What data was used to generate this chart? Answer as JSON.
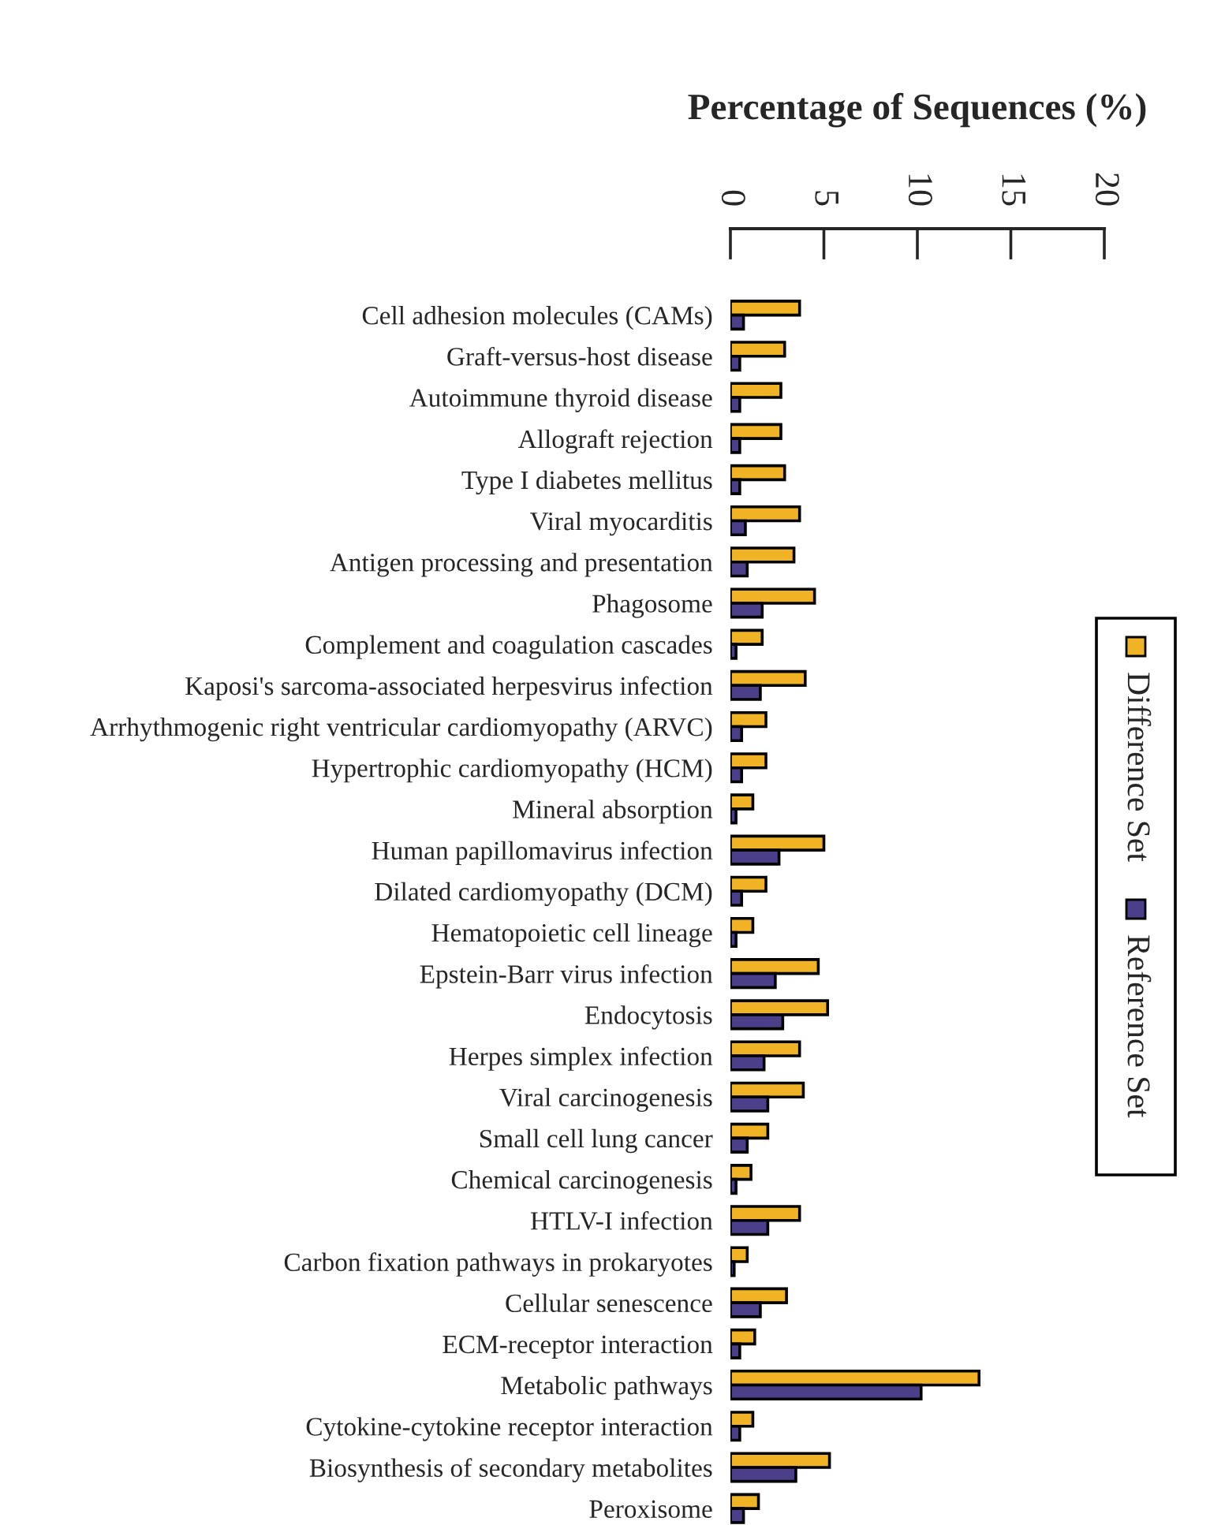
{
  "chart_data": {
    "type": "bar",
    "orientation": "horizontal",
    "xlabel": "Percentage of Sequences (%)",
    "categories": [
      "Cell adhesion molecules (CAMs)",
      "Graft-versus-host disease",
      "Autoimmune thyroid disease",
      "Allograft rejection",
      "Type I diabetes mellitus",
      "Viral myocarditis",
      "Antigen processing and presentation",
      "Phagosome",
      "Complement and coagulation cascades",
      "Kaposi's sarcoma-associated herpesvirus infection",
      "Arrhythmogenic right ventricular cardiomyopathy (ARVC)",
      "Hypertrophic cardiomyopathy (HCM)",
      "Mineral absorption",
      "Human papillomavirus infection",
      "Dilated cardiomyopathy (DCM)",
      "Hematopoietic cell lineage",
      "Epstein-Barr virus infection",
      "Endocytosis",
      "Herpes simplex infection",
      "Viral carcinogenesis",
      "Small cell lung cancer",
      "Chemical carcinogenesis",
      "HTLV-I infection",
      "Carbon fixation pathways in prokaryotes",
      "Cellular senescence",
      "ECM-receptor interaction",
      "Metabolic pathways",
      "Cytokine-cytokine receptor interaction",
      "Biosynthesis of secondary metabolites",
      "Peroxisome"
    ],
    "series": [
      {
        "name": "Difference Set",
        "color": "#efb325",
        "values": [
          3.7,
          2.9,
          2.7,
          2.7,
          2.9,
          3.7,
          3.4,
          4.5,
          1.7,
          4.0,
          1.9,
          1.9,
          1.2,
          5.0,
          1.9,
          1.2,
          4.7,
          5.2,
          3.7,
          3.9,
          2.0,
          1.1,
          3.7,
          0.9,
          3.0,
          1.3,
          13.3,
          1.2,
          5.3,
          1.5
        ]
      },
      {
        "name": "Reference Set",
        "color": "#4b3f8a",
        "values": [
          0.7,
          0.5,
          0.5,
          0.5,
          0.5,
          0.8,
          0.9,
          1.7,
          0.3,
          1.6,
          0.6,
          0.6,
          0.3,
          2.6,
          0.6,
          0.3,
          2.4,
          2.8,
          1.8,
          2.0,
          0.9,
          0.3,
          2.0,
          0.2,
          1.6,
          0.5,
          10.2,
          0.5,
          3.5,
          0.7
        ]
      }
    ],
    "xlim": [
      0,
      20
    ],
    "xticks": [
      0,
      5,
      10,
      15,
      20
    ],
    "grid": false,
    "legend": "right"
  }
}
